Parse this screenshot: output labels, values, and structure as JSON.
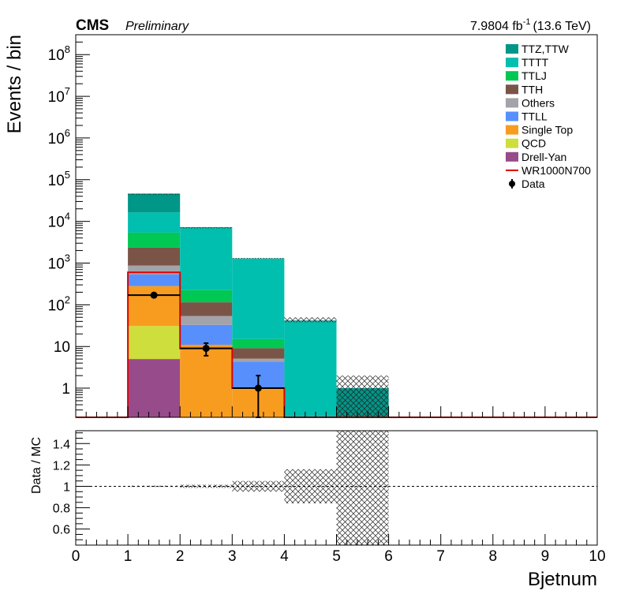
{
  "header": {
    "experiment": "CMS",
    "status": "Preliminary",
    "lumi": "7.9804 fb",
    "lumi_exp": "-1",
    "energy": "(13.6 TeV)"
  },
  "chart_data": [
    {
      "type": "bar",
      "stacked": true,
      "ylabel": "Events / bin",
      "xlim": [
        0,
        10
      ],
      "ylim": [
        0.2,
        300000000
      ],
      "yscale": "log",
      "yticks": [
        "1",
        "10",
        "10^2",
        "10^3",
        "10^4",
        "10^5",
        "10^6",
        "10^7",
        "10^8"
      ],
      "bin_edges": [
        0,
        1,
        2,
        3,
        4,
        5,
        6,
        7,
        8,
        9,
        10
      ],
      "series": [
        {
          "name": "Drell-Yan",
          "color": "#984b8b",
          "values": [
            0,
            5,
            0,
            0,
            0,
            0,
            0,
            0,
            0,
            0
          ]
        },
        {
          "name": "QCD",
          "color": "#cede3c",
          "values": [
            0,
            26,
            0,
            0,
            0,
            0,
            0,
            0,
            0,
            0
          ]
        },
        {
          "name": "Single Top",
          "color": "#f89c20",
          "values": [
            0,
            250,
            11,
            1,
            0,
            0,
            0,
            0,
            0,
            0
          ]
        },
        {
          "name": "TTLL",
          "color": "#5790fc",
          "values": [
            0,
            250,
            22,
            3.3,
            0,
            0,
            0,
            0,
            0,
            0
          ]
        },
        {
          "name": "Others",
          "color": "#a4a3aa",
          "values": [
            0,
            340,
            21,
            0.8,
            0,
            0,
            0,
            0,
            0,
            0
          ]
        },
        {
          "name": "TTH",
          "color": "#7a5547",
          "values": [
            0,
            1500,
            61,
            4,
            0,
            0,
            0,
            0,
            0,
            0
          ]
        },
        {
          "name": "TTLJ",
          "color": "#00c853",
          "values": [
            0,
            3000,
            110,
            6,
            0,
            0,
            0,
            0,
            0,
            0
          ]
        },
        {
          "name": "TTTT",
          "color": "#00bfae",
          "values": [
            0,
            11000,
            6700,
            1265,
            40,
            0,
            0,
            0,
            0,
            0
          ]
        },
        {
          "name": "TTZ,TTW",
          "color": "#009688",
          "values": [
            0,
            30000,
            300,
            20,
            2,
            1,
            0,
            0,
            0,
            0
          ]
        }
      ],
      "signal": {
        "name": "WR1000N700",
        "color": "#e00000",
        "values": [
          0,
          600,
          9,
          1,
          0,
          0,
          0,
          0,
          0,
          0
        ]
      },
      "data": {
        "name": "Data",
        "x": [
          1.5,
          2.5,
          3.5
        ],
        "y": [
          170,
          9,
          1
        ],
        "yerr_up": [
          13,
          3,
          1.0
        ],
        "yerr_down": [
          13,
          3,
          0.8
        ]
      },
      "uncertainty_band": {
        "bin_lo": [
          1,
          2,
          3,
          4,
          5
        ],
        "bin_hi": [
          2,
          3,
          4,
          5,
          6
        ],
        "up": [
          46000,
          7300,
          1330,
          50,
          2
        ],
        "down": [
          43000,
          6800,
          1270,
          38,
          0.2
        ]
      },
      "legend_position": "top-right"
    },
    {
      "type": "bar",
      "role": "ratio",
      "ylabel": "Data / MC",
      "xlabel": "Bjetnum",
      "xlim": [
        0,
        10
      ],
      "ylim": [
        0.45,
        1.52
      ],
      "yticks": [
        "0.6",
        "0.8",
        "1",
        "1.2",
        "1.4"
      ],
      "xticks": [
        "0",
        "1",
        "2",
        "3",
        "4",
        "5",
        "6",
        "7",
        "8",
        "9",
        "10"
      ],
      "reference_line": 1,
      "uncertainty_band": {
        "bin_lo": [
          1,
          2,
          3,
          4,
          5
        ],
        "bin_hi": [
          2,
          3,
          4,
          5,
          6
        ],
        "up": [
          1.006,
          1.015,
          1.05,
          1.16,
          1.6
        ],
        "down": [
          0.994,
          0.985,
          0.95,
          0.84,
          0.4
        ]
      }
    }
  ]
}
